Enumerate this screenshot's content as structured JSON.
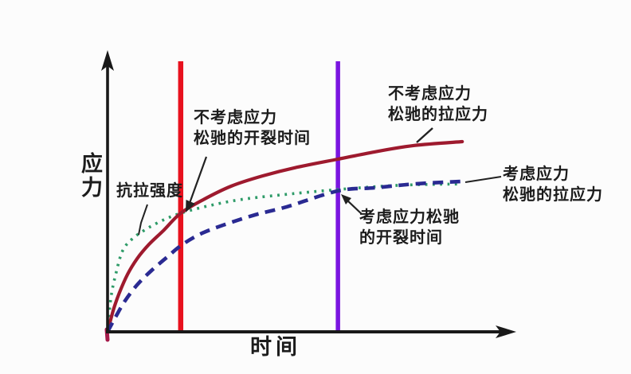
{
  "labels": {
    "ylabel": "应力",
    "xlabel": "时间",
    "strength": "抗拉强度",
    "crack_no_relax": "不考虑应力\n松驰的开裂时间",
    "stress_no_relax": "不考虑应力\n松驰的拉应力",
    "crack_relax": "考虑应力松驰\n的开裂时间",
    "stress_relax": "考虑应力\n松驰的拉应力"
  },
  "colors": {
    "strength_curve": "#2e9b68",
    "stress_no_relax_curve": "#9e1a2e",
    "stress_relax_curve": "#2a2a92",
    "crack_no_relax_line": "#e8111e",
    "crack_relax_line": "#7a15e0",
    "axis": "#191919"
  },
  "chart_data": {
    "type": "line",
    "title": "",
    "xlabel": "时间",
    "ylabel": "应力",
    "xlim": [
      0,
      100
    ],
    "ylim": [
      0,
      100
    ],
    "grid": false,
    "legend_position": "annotations-on-plot",
    "axis_ticks": "none (qualitative sketch, arbitrary units)",
    "series": [
      {
        "name": "抗拉强度",
        "style": "dotted",
        "color": "#2e9b68",
        "points": [
          [
            0,
            0
          ],
          [
            0.8,
            12
          ],
          [
            2,
            20.6
          ],
          [
            3.7,
            29.1
          ],
          [
            6.1,
            33.4
          ],
          [
            9.2,
            36.6
          ],
          [
            13.5,
            40
          ],
          [
            18,
            42.6
          ],
          [
            24.5,
            45.1
          ],
          [
            32.4,
            47.4
          ],
          [
            42.2,
            49.1
          ],
          [
            56.7,
            51.1
          ],
          [
            71.6,
            52.6
          ],
          [
            86.9,
            53.1
          ]
        ]
      },
      {
        "name": "不考虑应力松驰的拉应力",
        "style": "solid",
        "color": "#9e1a2e",
        "points": [
          [
            0,
            0
          ],
          [
            1.4,
            7.7
          ],
          [
            2.9,
            14
          ],
          [
            4.9,
            20.6
          ],
          [
            7.3,
            26.3
          ],
          [
            10.2,
            31.4
          ],
          [
            13.7,
            36.3
          ],
          [
            18,
            42.6
          ],
          [
            23.5,
            47.4
          ],
          [
            30.4,
            52.3
          ],
          [
            38.2,
            56
          ],
          [
            46.1,
            58.9
          ],
          [
            56.7,
            62
          ],
          [
            65.7,
            64.6
          ],
          [
            75.5,
            66.9
          ],
          [
            87.3,
            68.3
          ]
        ]
      },
      {
        "name": "考虑应力松驰的拉应力",
        "style": "dashed",
        "color": "#2a2a92",
        "points": [
          [
            0,
            0
          ],
          [
            2,
            5.4
          ],
          [
            4.3,
            11.1
          ],
          [
            7.3,
            16.9
          ],
          [
            10.8,
            22
          ],
          [
            14.7,
            26.9
          ],
          [
            18,
            30.9
          ],
          [
            22.5,
            34.9
          ],
          [
            28.4,
            38.3
          ],
          [
            36.3,
            42
          ],
          [
            44.1,
            44.9
          ],
          [
            56.7,
            50.6
          ],
          [
            65.7,
            51.7
          ],
          [
            75.5,
            53.1
          ],
          [
            86.9,
            54
          ]
        ]
      }
    ],
    "vlines": [
      {
        "name": "不考虑应力松驰的开裂时间",
        "x": 18,
        "color": "#e8111e"
      },
      {
        "name": "考虑应力松驰的开裂时间",
        "x": 56.7,
        "color": "#7a15e0"
      }
    ]
  }
}
